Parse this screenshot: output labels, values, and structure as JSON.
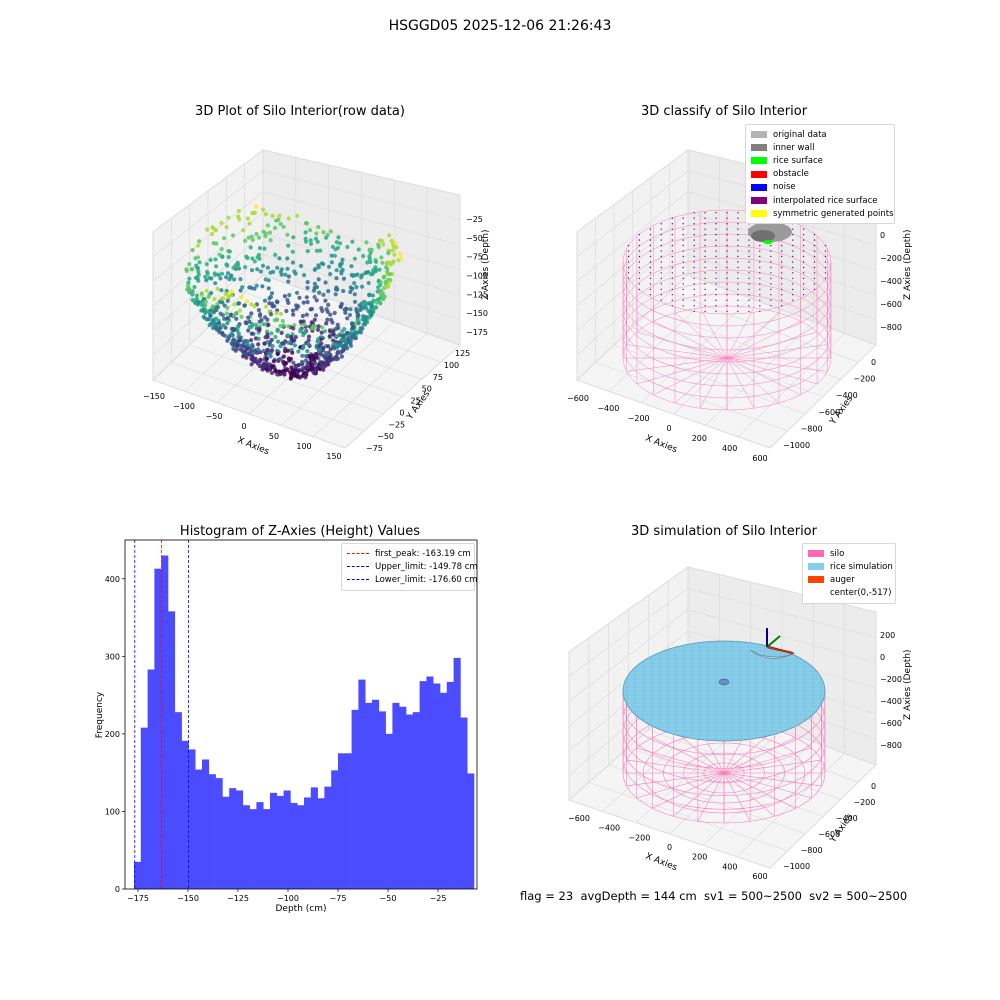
{
  "suptitle": "HSGGD05 2025-12-06 21:26:43",
  "panels": {
    "raw": {
      "title": "3D Plot of Silo Interior(row data)",
      "xlabel": "X Axies",
      "ylabel": "Y Axies",
      "zlabel": "Z Axies (Depth)",
      "xticks": [
        "−150",
        "−100",
        "−50",
        "0",
        "50",
        "100",
        "150"
      ],
      "yticks": [
        "−75",
        "−50",
        "−25",
        "0",
        "25",
        "50",
        "75",
        "100",
        "125"
      ],
      "zticks": [
        "−25",
        "−50",
        "−75",
        "−100",
        "−125",
        "−150",
        "−175"
      ]
    },
    "classify": {
      "title": "3D classify of Silo Interior",
      "xlabel": "X Axies",
      "ylabel": "Y Axies",
      "zlabel": "Z Axies (Depth)",
      "xticks": [
        "−600",
        "−400",
        "−200",
        "0",
        "200",
        "400",
        "600"
      ],
      "yticks": [
        "−1000",
        "−800",
        "−600",
        "−400",
        "−200",
        "0"
      ],
      "zticks": [
        "200",
        "0",
        "−200",
        "−400",
        "−600",
        "−800"
      ],
      "legend": [
        {
          "label": "original data",
          "color": "#b3b3b3"
        },
        {
          "label": "inner wall",
          "color": "#808080"
        },
        {
          "label": "rice surface",
          "color": "#00ff00"
        },
        {
          "label": "obstacle",
          "color": "#ff0000"
        },
        {
          "label": "noise",
          "color": "#0000ff"
        },
        {
          "label": "interpolated rice surface",
          "color": "#800080"
        },
        {
          "label": "symmetric generated points",
          "color": "#ffff00"
        }
      ]
    },
    "simulation": {
      "title": "3D simulation of Silo Interior",
      "xlabel": "X Axies",
      "ylabel": "Y Axies",
      "zlabel": "Z Axies (Depth)",
      "xticks": [
        "−600",
        "−400",
        "−200",
        "0",
        "200",
        "400",
        "600"
      ],
      "yticks": [
        "−1000",
        "−800",
        "−600",
        "−400",
        "−200",
        "0"
      ],
      "zticks": [
        "200",
        "0",
        "−200",
        "−400",
        "−600",
        "−800"
      ],
      "legend": [
        {
          "label": "silo",
          "color": "#ff69b4"
        },
        {
          "label": "rice simulation",
          "color": "#87ceeb"
        },
        {
          "label": "auger",
          "color": "#ff4500"
        },
        {
          "label": "center(0,-517)",
          "color": ""
        }
      ]
    }
  },
  "footer": "flag = 23  avgDepth = 144 cm  sv1 = 500~2500  sv2 = 500~2500",
  "colors": {
    "bars": "#4b4bff",
    "peak": "#ff0000",
    "limits": "#0000ff",
    "silo": "#ff69b4",
    "rice": "#87ceeb"
  },
  "chart_data": [
    {
      "type": "bar",
      "title": "Histogram of Z-Axies (Height) Values",
      "xlabel": "Depth (cm)",
      "ylabel": "Frequency",
      "xlim": [
        -181.5,
        -5.5
      ],
      "ylim": [
        0,
        450
      ],
      "xticks": [
        -175,
        -150,
        -125,
        -100,
        -75,
        -50,
        -25
      ],
      "xticklabels": [
        "−175",
        "−150",
        "−125",
        "−100",
        "−75",
        "−50",
        "−25"
      ],
      "yticks": [
        0,
        100,
        200,
        300,
        400
      ],
      "bin_start": -177.0,
      "bin_width": 3.4,
      "values": [
        35,
        208,
        283,
        413,
        430,
        358,
        228,
        191,
        180,
        154,
        167,
        148,
        143,
        119,
        130,
        127,
        108,
        103,
        112,
        103,
        124,
        120,
        127,
        111,
        108,
        118,
        131,
        117,
        132,
        153,
        175,
        175,
        231,
        270,
        240,
        244,
        229,
        200,
        240,
        235,
        225,
        228,
        268,
        274,
        265,
        253,
        267,
        298,
        221,
        149
      ],
      "vlines": [
        {
          "label": "first_peak: -163.19 cm",
          "x": -163.19,
          "color": "#ff0000"
        },
        {
          "label": "Upper_limit: -149.78 cm",
          "x": -149.78,
          "color": "#0000ff"
        },
        {
          "label": "Lower_limit: -176.60 cm",
          "x": -176.6,
          "color": "#0000ff"
        }
      ],
      "legend_position": "top-right"
    }
  ]
}
